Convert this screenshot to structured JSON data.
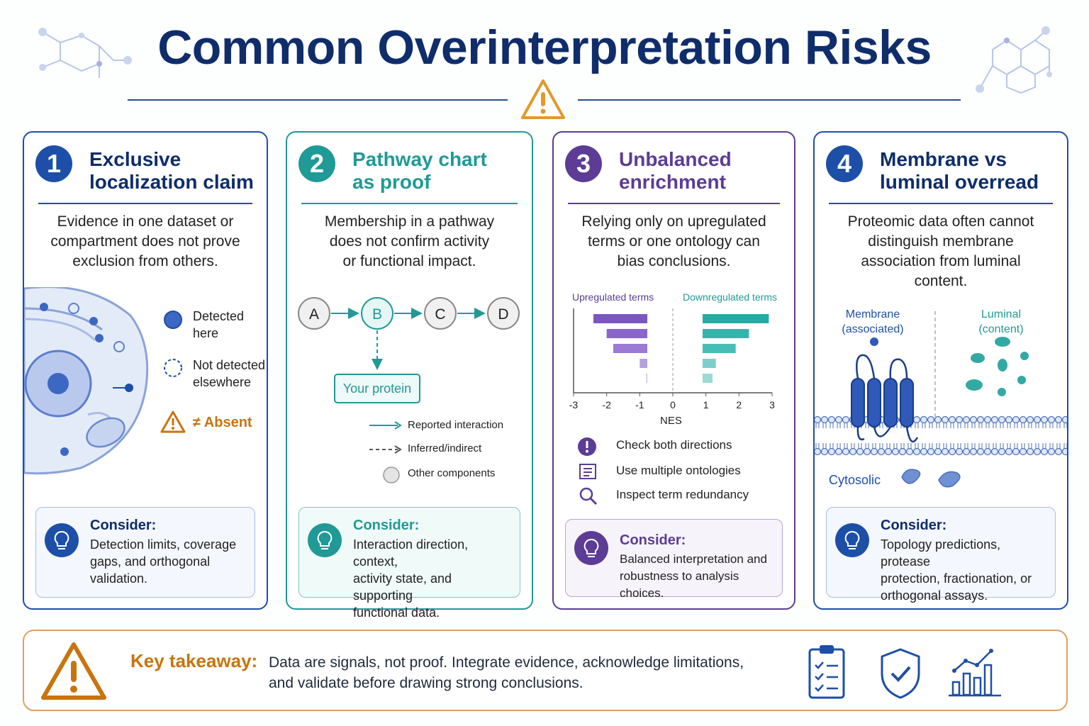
{
  "title": "Common Overinterpretation Risks",
  "colors": {
    "navy": "#0f2d6b",
    "blue": "#1d4fa8",
    "teal": "#1f9a96",
    "purple": "#5c3c94",
    "orange": "#c8740e"
  },
  "cards": [
    {
      "number": "1",
      "title_line1": "Exclusive",
      "title_line2": "localization claim",
      "desc_lines": [
        "Evidence in one dataset or",
        "compartment does not prove",
        "exclusion from others."
      ],
      "legend": {
        "detected_1": "Detected",
        "detected_2": "here",
        "not_detected_1": "Not detected",
        "not_detected_2": "elsewhere",
        "absent": "≠ Absent"
      },
      "consider_heading": "Consider:",
      "consider_lines": [
        "Detection limits, coverage",
        "gaps, and orthogonal",
        "validation."
      ]
    },
    {
      "number": "2",
      "title_line1": "Pathway chart",
      "title_line2": "as proof",
      "desc_lines": [
        "Membership in a pathway",
        "does not confirm activity",
        "or functional impact."
      ],
      "nodes": [
        "A",
        "B",
        "C",
        "D"
      ],
      "protein_label": "Your protein",
      "legend": {
        "reported": "Reported interaction",
        "inferred": "Inferred/indirect",
        "other": "Other components"
      },
      "consider_heading": "Consider:",
      "consider_lines": [
        "Interaction direction, context,",
        "activity state, and supporting",
        "functional data."
      ]
    },
    {
      "number": "3",
      "title_line1": "Unbalanced",
      "title_line2": "enrichment",
      "desc_lines": [
        "Relying only on upregulated",
        "terms or one ontology can",
        "bias conclusions."
      ],
      "chart_labels": {
        "up": "Upregulated terms",
        "down": "Downregulated terms",
        "axis": "NES"
      },
      "checks": [
        "Check both directions",
        "Use multiple ontologies",
        "Inspect term redundancy"
      ],
      "consider_heading": "Consider:",
      "consider_lines": [
        "Balanced interpretation and",
        "robustness to analysis choices."
      ]
    },
    {
      "number": "4",
      "title_line1": "Membrane vs",
      "title_line2": "luminal overread",
      "desc_lines": [
        "Proteomic data often cannot",
        "distinguish membrane",
        "association from luminal",
        "content."
      ],
      "membrane_1": "Membrane",
      "membrane_2": "(associated)",
      "luminal_1": "Luminal",
      "luminal_2": "(content)",
      "cytosolic": "Cytosolic",
      "consider_heading": "Consider:",
      "consider_lines": [
        "Topology predictions, protease",
        "protection, fractionation, or",
        "orthogonal assays."
      ]
    }
  ],
  "chart_data": {
    "type": "bar",
    "xlabel": "NES",
    "xlim": [
      -3,
      3
    ],
    "xticks": [
      "-3",
      "-2",
      "-1",
      "0",
      "1",
      "2",
      "3"
    ],
    "series": [
      {
        "name": "Upregulated terms",
        "values": [
          -2.4,
          -2.0,
          -1.8,
          -1.0,
          -0.8
        ]
      },
      {
        "name": "Downregulated terms",
        "values": [
          2.9,
          2.3,
          1.9,
          1.3,
          1.2
        ]
      }
    ]
  },
  "takeaway": {
    "heading": "Key takeaway:",
    "line1": "Data are signals, not proof. Integrate evidence, acknowledge limitations,",
    "line2": "and validate before drawing strong conclusions."
  }
}
